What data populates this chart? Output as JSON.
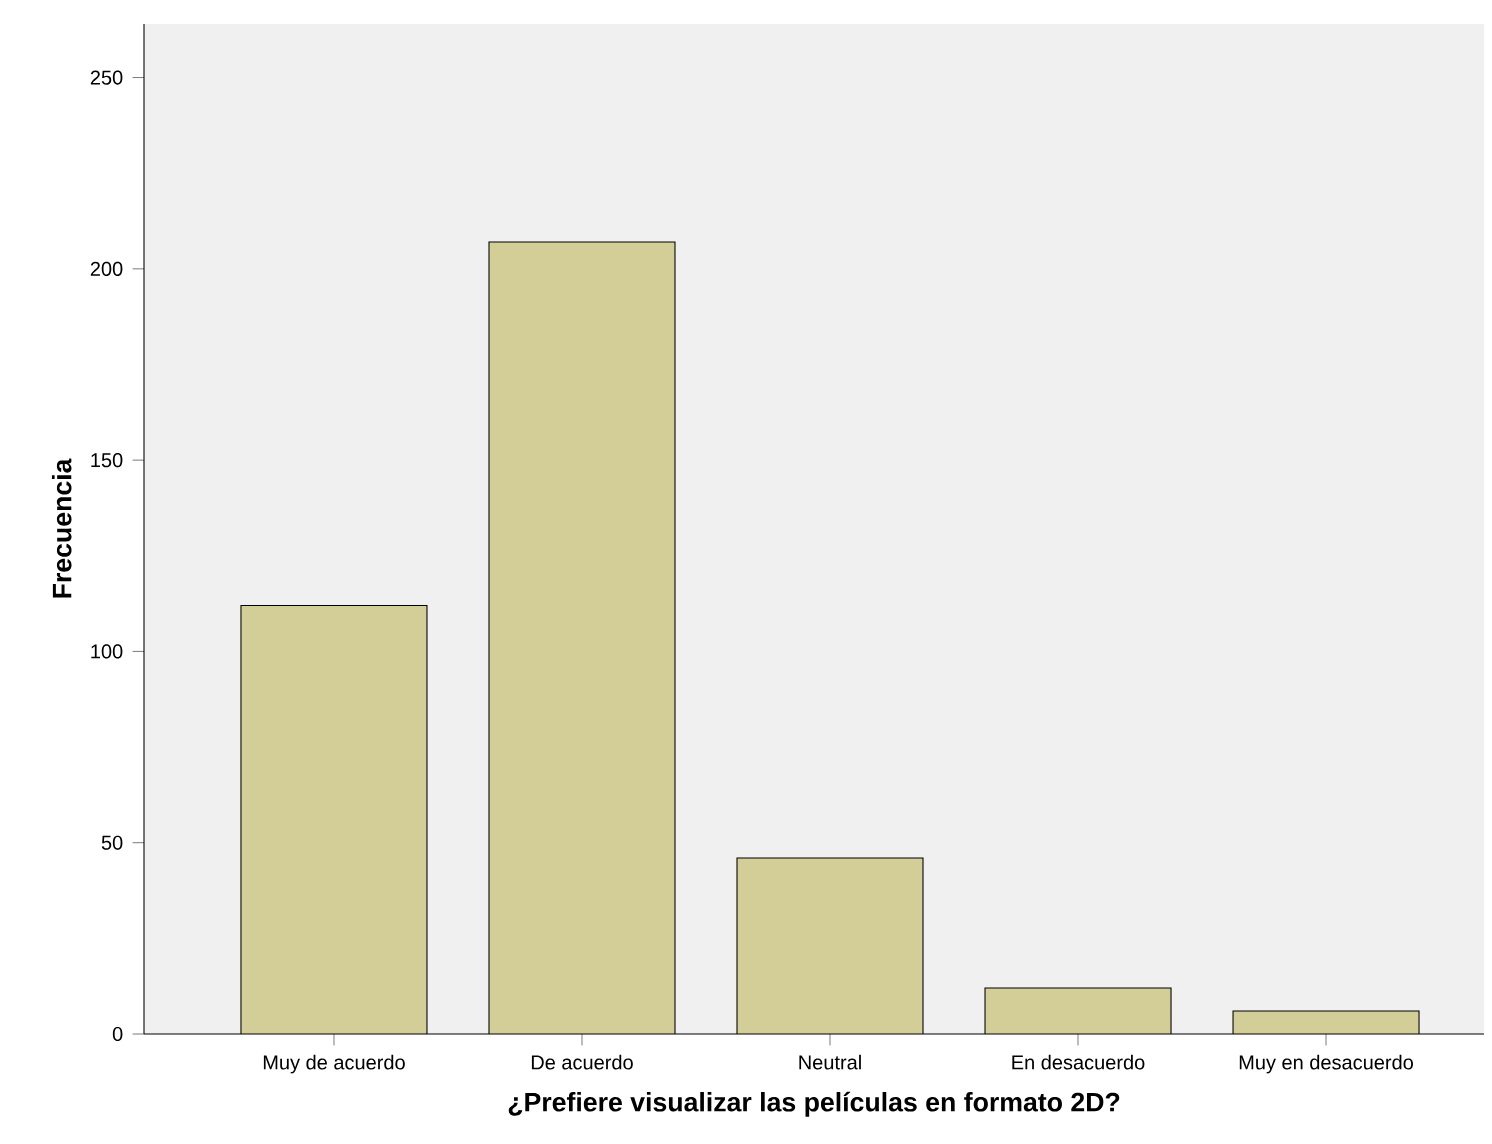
{
  "chart_data": {
    "type": "bar",
    "xlabel": "¿Prefiere visualizar las películas en formato 2D?",
    "ylabel": "Frecuencia",
    "categories": [
      "Muy de acuerdo",
      "De acuerdo",
      "Neutral",
      "En desacuerdo",
      "Muy en desacuerdo"
    ],
    "values": [
      112,
      207,
      46,
      12,
      6
    ],
    "color": "#d3ce97",
    "ylim": [
      0,
      264
    ],
    "yticks": [
      0,
      50,
      100,
      150,
      200,
      250
    ]
  }
}
